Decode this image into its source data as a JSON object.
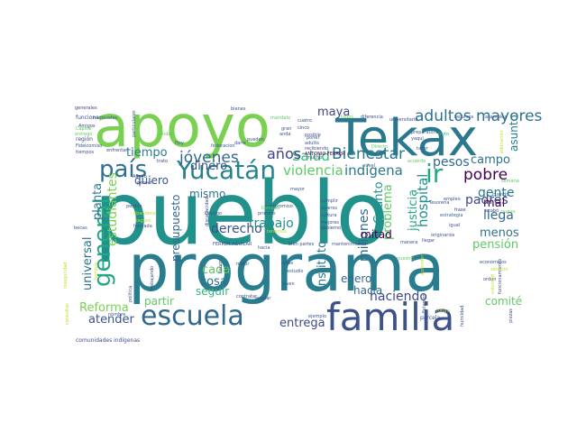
{
  "words": [
    {
      "text": "pueblo",
      "color": "#21918c",
      "layout": "0"
    },
    {
      "text": "programa",
      "color": "#287d8e",
      "layout": "1"
    },
    {
      "text": "apoyo",
      "color": "#7ad151",
      "layout": "2"
    },
    {
      "text": "Tekax",
      "color": "#2a788e",
      "layout": "3"
    },
    {
      "text": "familia",
      "color": "#3b528b",
      "layout": "4"
    },
    {
      "text": "escuela",
      "color": "#31688e",
      "layout": "5"
    },
    {
      "text": "Yucatán",
      "color": "#26828e",
      "layout": "6"
    },
    {
      "text": "país",
      "color": "#2c728e",
      "layout": "7"
    },
    {
      "text": "general",
      "color": "#22a884",
      "layout": "8"
    },
    {
      "text": "ir",
      "color": "#22a884",
      "layout": "9"
    },
    {
      "text": "jóvenes",
      "color": "#31688e",
      "layout": "10"
    },
    {
      "text": "adultos mayores",
      "color": "#2c728e",
      "layout": "11"
    },
    {
      "text": "maya",
      "color": "#3e4989",
      "layout": "12"
    },
    {
      "text": "Bienestar",
      "color": "#2a788e",
      "layout": "13"
    },
    {
      "text": "Salud",
      "color": "#35b779",
      "layout": "14"
    },
    {
      "text": "años",
      "color": "#414487",
      "layout": "15"
    },
    {
      "text": "violencia",
      "color": "#5ec962",
      "layout": "16"
    },
    {
      "text": "indígena",
      "color": "#2a788e",
      "layout": "17"
    },
    {
      "text": "tiempo",
      "color": "#287d8e",
      "layout": "18"
    },
    {
      "text": "dinero",
      "color": "#3b528b",
      "layout": "19"
    },
    {
      "text": "quiero",
      "color": "#3b528b",
      "layout": "20"
    },
    {
      "text": "mismo",
      "color": "#2c728e",
      "layout": "21"
    },
    {
      "text": "pobre",
      "color": "#440154",
      "layout": "22"
    },
    {
      "text": "pesos",
      "color": "#31688e",
      "layout": "23"
    },
    {
      "text": "campo",
      "color": "#2c728e",
      "layout": "24"
    },
    {
      "text": "asunto",
      "color": "#287d8e",
      "layout": "25"
    },
    {
      "text": "padres",
      "color": "#3e4989",
      "layout": "26"
    },
    {
      "text": "gente",
      "color": "#2a788e",
      "layout": "27"
    },
    {
      "text": "llega",
      "color": "#31688e",
      "layout": "28"
    },
    {
      "text": "mal",
      "color": "#440154",
      "layout": "29"
    },
    {
      "text": "menos",
      "color": "#2c728e",
      "layout": "30"
    },
    {
      "text": "pensión",
      "color": "#5ec962",
      "layout": "31"
    },
    {
      "text": "comité",
      "color": "#5ec962",
      "layout": "32"
    },
    {
      "text": "hospital",
      "color": "#21918c",
      "layout": "33"
    },
    {
      "text": "problema",
      "color": "#5ec962",
      "layout": "34"
    },
    {
      "text": "justicia",
      "color": "#22a884",
      "layout": "35"
    },
    {
      "text": "Cuanto",
      "color": "#21918c",
      "layout": "36"
    },
    {
      "text": "millones",
      "color": "#31688e",
      "layout": "37"
    },
    {
      "text": "mitad",
      "color": "#440154",
      "layout": "38"
    },
    {
      "text": "trabajo",
      "color": "#21918c",
      "layout": "39"
    },
    {
      "text": "derecho",
      "color": "#3b528b",
      "layout": "40"
    },
    {
      "text": "presupuesto",
      "color": "#31688e",
      "layout": "41"
    },
    {
      "text": "estudiantes",
      "color": "#7ad151",
      "layout": "42"
    },
    {
      "text": "planta",
      "color": "#2a788e",
      "layout": "43"
    },
    {
      "text": "universal",
      "color": "#2c728e",
      "layout": "44"
    },
    {
      "text": "Reforma",
      "color": "#7ad151",
      "layout": "45"
    },
    {
      "text": "atender",
      "color": "#3b528b",
      "layout": "46"
    },
    {
      "text": "cada",
      "color": "#5ec962",
      "layout": "47"
    },
    {
      "text": "cosa",
      "color": "#2c728e",
      "layout": "48"
    },
    {
      "text": "seguir",
      "color": "#35b779",
      "layout": "49"
    },
    {
      "text": "partir",
      "color": "#5ec962",
      "layout": "50"
    },
    {
      "text": "entrega",
      "color": "#3e4989",
      "layout": "51"
    },
    {
      "text": "Instituto",
      "color": "#2a788e",
      "layout": "52"
    },
    {
      "text": "enero",
      "color": "#31688e",
      "layout": "53"
    },
    {
      "text": "hacia",
      "color": "#31688e",
      "layout": "54"
    },
    {
      "text": "haciendo",
      "color": "#3e4989",
      "layout": "55"
    },
    {
      "text": "FERRER AGUILAR",
      "color": "#3b528b",
      "layout": "56"
    },
    {
      "text": "ANTONIO FERRER",
      "color": "#440154",
      "layout": "57"
    },
    {
      "text": "Diálogo",
      "color": "#3b528b",
      "layout": "58"
    },
    {
      "text": "comunidades indígenas",
      "color": "#3e4989",
      "layout": "59"
    },
    {
      "text": "generales",
      "color": "#414487",
      "layout": "60"
    },
    {
      "text": "funciona",
      "color": "#3b528b",
      "layout": "61"
    },
    {
      "text": "región",
      "color": "#3e4989",
      "layout": "62"
    },
    {
      "text": "Amigos",
      "color": "#414487",
      "layout": "63"
    },
    {
      "text": "pueden",
      "color": "#3b528b",
      "layout": "64"
    },
    {
      "text": "cuatro",
      "color": "#3b528b",
      "layout": "65"
    },
    {
      "text": "cinco",
      "color": "#3e4989",
      "layout": "66"
    },
    {
      "text": "todos",
      "color": "#7ad151",
      "layout": "67"
    },
    {
      "text": "universitario",
      "color": "#3e4989",
      "layout": "68"
    },
    {
      "text": "recursos",
      "color": "#3b528b",
      "layout": "69"
    },
    {
      "text": "preparatoria",
      "color": "#31688e",
      "layout": "70"
    },
    {
      "text": "fruto",
      "color": "#35b779",
      "layout": "71"
    },
    {
      "text": "yaqui",
      "color": "#3e4989",
      "layout": "72"
    },
    {
      "text": "federacion",
      "color": "#3b528b",
      "layout": "73"
    },
    {
      "text": "Hoy",
      "color": "#31688e",
      "layout": "74"
    },
    {
      "text": "adulto",
      "color": "#3b528b",
      "layout": "75"
    },
    {
      "text": "nivel",
      "color": "#3b528b",
      "layout": "76"
    },
    {
      "text": "Tesorería",
      "color": "#3b528b",
      "layout": "77"
    },
    {
      "text": "estrategia",
      "color": "#31688e",
      "layout": "78"
    },
    {
      "text": "empleo",
      "color": "#3b528b",
      "layout": "79"
    },
    {
      "text": "cuando",
      "color": "#31688e",
      "layout": "80"
    },
    {
      "text": "frase",
      "color": "#3e4989",
      "layout": "81"
    },
    {
      "text": "igual",
      "color": "#3b528b",
      "layout": "82"
    },
    {
      "text": "llegar",
      "color": "#3e4989",
      "layout": "83"
    },
    {
      "text": "manera",
      "color": "#3b528b",
      "layout": "84"
    },
    {
      "text": "económicos",
      "color": "#3b528b",
      "layout": "85"
    },
    {
      "text": "bien partes",
      "color": "#3b528b",
      "layout": "86"
    },
    {
      "text": "mantenimiento",
      "color": "#3b528b",
      "layout": "87"
    },
    {
      "text": "cultura",
      "color": "#3b528b",
      "layout": "88"
    },
    {
      "text": "gobierno",
      "color": "#3e4989",
      "layout": "89"
    },
    {
      "text": "cumplir",
      "color": "#3b528b",
      "layout": "90"
    },
    {
      "text": "mayor",
      "color": "#3b528b",
      "layout": "91"
    },
    {
      "text": "discapacidad",
      "color": "#3b528b",
      "layout": "92"
    },
    {
      "text": "perdón",
      "color": "#3b528b",
      "layout": "93"
    },
    {
      "text": "Adelfo",
      "color": "#3e4989",
      "layout": "94"
    },
    {
      "text": "perder",
      "color": "#3b528b",
      "layout": "95"
    },
    {
      "text": "trabajando",
      "color": "#3b528b",
      "layout": "96"
    },
    {
      "text": "becas",
      "color": "#3b528b",
      "layout": "97"
    },
    {
      "text": "honrada",
      "color": "#3b528b",
      "layout": "98"
    },
    {
      "text": "joven",
      "color": "#3b528b",
      "layout": "99"
    },
    {
      "text": "ayudar",
      "color": "#3b528b",
      "layout": "100"
    },
    {
      "text": "ejemplo",
      "color": "#3b528b",
      "layout": "101"
    },
    {
      "text": "primero",
      "color": "#3b528b",
      "layout": "102"
    },
    {
      "text": "estudio",
      "color": "#3b528b",
      "layout": "103"
    },
    {
      "text": "parcela",
      "color": "#3e4989",
      "layout": "104"
    },
    {
      "text": "piezas",
      "color": "#3b528b",
      "layout": "105"
    },
    {
      "text": "orden",
      "color": "#3b528b",
      "layout": "106"
    },
    {
      "text": "trato",
      "color": "#3e4989",
      "layout": "107"
    },
    {
      "text": "hacía",
      "color": "#3b528b",
      "layout": "108"
    },
    {
      "text": "mejor",
      "color": "#3b528b",
      "layout": "109"
    },
    {
      "text": "llanos",
      "color": "#3b528b",
      "layout": "110"
    },
    {
      "text": "aulas",
      "color": "#3b528b",
      "layout": "111"
    },
    {
      "text": "diferencia",
      "color": "#3e4989",
      "layout": "112"
    },
    {
      "text": "taller",
      "color": "#3b528b",
      "layout": "113"
    },
    {
      "text": "Directo",
      "color": "#5ec962",
      "layout": "114"
    },
    {
      "text": "asamblea",
      "color": "#3b528b",
      "layout": "115"
    },
    {
      "text": "política",
      "color": "#3b528b",
      "layout": "116"
    },
    {
      "text": "nombre",
      "color": "#3b528b",
      "layout": "117"
    },
    {
      "text": "originarios",
      "color": "#3b528b",
      "layout": "118"
    },
    {
      "text": "acabó",
      "color": "#3b528b",
      "layout": "119"
    },
    {
      "text": "Estamos",
      "color": "#3b528b",
      "layout": "120"
    },
    {
      "text": "viveros",
      "color": "#3b528b",
      "layout": "121"
    },
    {
      "text": "mejores",
      "color": "#3b528b",
      "layout": "122"
    },
    {
      "text": "particulares",
      "color": "#3b528b",
      "layout": "123"
    },
    {
      "text": "entregó",
      "color": "#5ec962",
      "layout": "124"
    },
    {
      "text": "mensuales",
      "color": "#3b528b",
      "layout": "125"
    },
    {
      "text": "poner",
      "color": "#3b528b",
      "layout": "126"
    },
    {
      "text": "darle",
      "color": "#3b528b",
      "layout": "127"
    },
    {
      "text": "bienes",
      "color": "#3b528b",
      "layout": "128"
    },
    {
      "text": "enfrentar",
      "color": "#3b528b",
      "layout": "129"
    },
    {
      "text": "Fideicomiso",
      "color": "#3b528b",
      "layout": "130"
    },
    {
      "text": "posible",
      "color": "#3b528b",
      "layout": "131"
    },
    {
      "text": "recibiendo",
      "color": "#3b528b",
      "layout": "132"
    },
    {
      "text": "contratar",
      "color": "#3b528b",
      "layout": "133"
    },
    {
      "text": "compromiso",
      "color": "#3b528b",
      "layout": "134"
    },
    {
      "text": "mucho",
      "color": "#3b528b",
      "layout": "135"
    },
    {
      "text": "tiempos",
      "color": "#3b528b",
      "layout": "136"
    },
    {
      "text": "anda",
      "color": "#3b528b",
      "layout": "137"
    },
    {
      "text": "gran",
      "color": "#3b528b",
      "layout": "138"
    },
    {
      "text": "acuerdo",
      "color": "#5ec962",
      "layout": "139"
    },
    {
      "text": "seguro",
      "color": "#bddf26",
      "layout": "140"
    },
    {
      "text": "abandono",
      "color": "#bddf26",
      "layout": "141"
    },
    {
      "text": "Capital",
      "color": "#5ec962",
      "layout": "142"
    },
    {
      "text": "mandato",
      "color": "#5ec962",
      "layout": "143"
    },
    {
      "text": "nuevo",
      "color": "#5ec962",
      "layout": "144"
    },
    {
      "text": "llamada",
      "color": "#5ec962",
      "layout": "145"
    },
    {
      "text": "nuestro",
      "color": "#5ec962",
      "layout": "146"
    },
    {
      "text": "tenemos",
      "color": "#bddf26",
      "layout": "147"
    },
    {
      "text": "futuro",
      "color": "#bddf26",
      "layout": "148"
    },
    {
      "text": "aprender",
      "color": "#bddf26",
      "layout": "149"
    },
    {
      "text": "inseguridad",
      "color": "#bddf26",
      "layout": "150"
    },
    {
      "text": "consultas",
      "color": "#bddf26",
      "layout": "151"
    },
    {
      "text": "funcionamiento",
      "color": "#3b528b",
      "layout": "152"
    },
    {
      "text": "humildad",
      "color": "#3b528b",
      "layout": "153"
    },
    {
      "text": "educación",
      "color": "#bddf26",
      "layout": "154"
    },
    {
      "text": "voluntad",
      "color": "#bddf26",
      "layout": "155"
    },
    {
      "text": "servicio",
      "color": "#bddf26",
      "layout": "156"
    },
    {
      "text": "semana",
      "color": "#5ec962",
      "layout": "157"
    },
    {
      "text": "hombre",
      "color": "#bddf26",
      "layout": "158"
    },
    {
      "text": "ciudad",
      "color": "#5ec962",
      "layout": "159"
    }
  ]
}
